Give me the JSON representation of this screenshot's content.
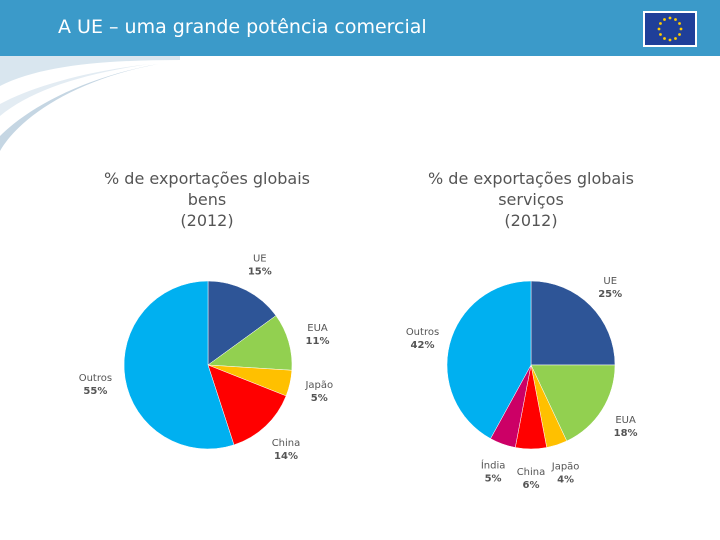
{
  "header": {
    "title": "A UE – uma grande potência comercial"
  },
  "colors": {
    "header": "#3b9ac9",
    "flag": "#1f3f99",
    "star": "#ffcc00"
  },
  "chart_data": [
    {
      "type": "pie",
      "title": [
        "% de exportações globais",
        "bens",
        "(2012)"
      ],
      "slices": [
        {
          "label": "UE",
          "pct_label": "15%",
          "value": 15,
          "color": "#2e5597"
        },
        {
          "label": "EUA",
          "pct_label": "11%",
          "value": 11,
          "color": "#92d050"
        },
        {
          "label": "Japão",
          "pct_label": "5%",
          "value": 5,
          "color": "#ffc000"
        },
        {
          "label": "China",
          "pct_label": "14%",
          "value": 14,
          "color": "#ff0000"
        },
        {
          "label": "Outros",
          "pct_label": "55%",
          "value": 55,
          "color": "#00b0f0"
        }
      ]
    },
    {
      "type": "pie",
      "title": [
        "% de exportações globais",
        "serviços",
        "(2012)"
      ],
      "slices": [
        {
          "label": "UE",
          "pct_label": "25%",
          "value": 25,
          "color": "#2e5597"
        },
        {
          "label": "EUA",
          "pct_label": "18%",
          "value": 18,
          "color": "#92d050"
        },
        {
          "label": "Japão",
          "pct_label": "4%",
          "value": 4,
          "color": "#ffc000"
        },
        {
          "label": "China",
          "pct_label": "6%",
          "value": 6,
          "color": "#ff0000"
        },
        {
          "label": "Índia",
          "pct_label": "5%",
          "value": 5,
          "color": "#cc0066"
        },
        {
          "label": "Outros",
          "pct_label": "42%",
          "value": 42,
          "color": "#00b0f0"
        }
      ]
    }
  ]
}
